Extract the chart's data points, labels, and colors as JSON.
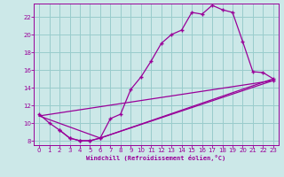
{
  "background_color": "#cce8e8",
  "grid_color": "#99cccc",
  "line_color": "#990099",
  "marker": "+",
  "xlabel": "Windchill (Refroidissement éolien,°C)",
  "xlim": [
    -0.5,
    23.5
  ],
  "ylim": [
    7.5,
    23.5
  ],
  "yticks": [
    8,
    10,
    12,
    14,
    16,
    18,
    20,
    22
  ],
  "xticks": [
    0,
    1,
    2,
    3,
    4,
    5,
    6,
    7,
    8,
    9,
    10,
    11,
    12,
    13,
    14,
    15,
    16,
    17,
    18,
    19,
    20,
    21,
    22,
    23
  ],
  "line1_x": [
    0,
    1,
    2,
    3,
    4,
    5,
    6,
    7,
    8,
    9,
    10,
    11,
    12,
    13,
    14,
    15,
    16,
    17,
    18,
    19,
    20,
    21,
    22,
    23
  ],
  "line1_y": [
    11.0,
    10.0,
    9.2,
    8.3,
    8.0,
    8.0,
    8.3,
    10.5,
    11.0,
    13.8,
    15.2,
    17.0,
    19.0,
    20.0,
    20.5,
    22.5,
    22.3,
    23.3,
    22.8,
    22.5,
    19.2,
    15.8,
    15.7,
    15.0
  ],
  "line2_x": [
    0,
    6,
    23
  ],
  "line2_y": [
    10.8,
    8.3,
    15.0
  ],
  "line3_x": [
    2,
    3,
    4,
    5,
    6,
    23
  ],
  "line3_y": [
    9.2,
    8.3,
    8.0,
    8.0,
    8.3,
    14.8
  ],
  "line4_x": [
    0,
    23
  ],
  "line4_y": [
    10.8,
    14.8
  ]
}
